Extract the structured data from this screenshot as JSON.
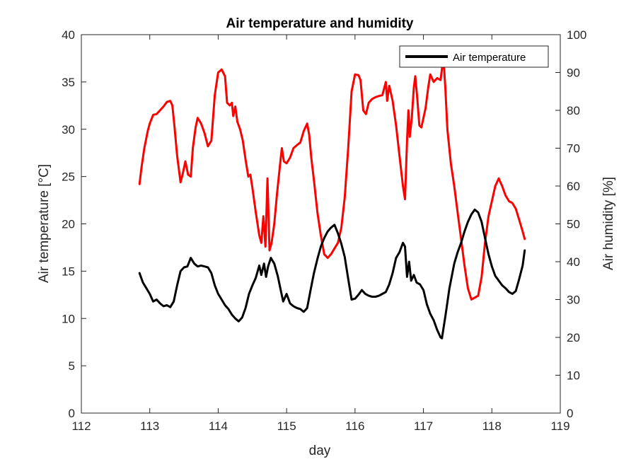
{
  "chart_data": {
    "type": "line",
    "title": "Air temperature and humidity",
    "xlabel": "day",
    "ylabel_left": "Air temperature [°C]",
    "ylabel_right": "Air humidity [%]",
    "xlim": [
      112,
      119
    ],
    "ylim_left": [
      0,
      40
    ],
    "ylim_right": [
      0,
      100
    ],
    "x_ticks": [
      "112",
      "113",
      "114",
      "115",
      "116",
      "117",
      "118",
      "119"
    ],
    "y_left_ticks": [
      "0",
      "5",
      "10",
      "15",
      "20",
      "25",
      "30",
      "35",
      "40"
    ],
    "y_right_ticks": [
      "0",
      "10",
      "20",
      "30",
      "40",
      "50",
      "60",
      "70",
      "80",
      "90",
      "100"
    ],
    "grid": false,
    "legend": {
      "placement": "top-right",
      "entries": [
        "Air temperature"
      ]
    },
    "colors": {
      "temperature": "#000000",
      "humidity": "#ff0000"
    },
    "series": [
      {
        "name": "Air temperature",
        "axis": "left",
        "color": "#000000",
        "points": [
          [
            112.85,
            14.8
          ],
          [
            112.9,
            13.8
          ],
          [
            112.95,
            13.2
          ],
          [
            113.0,
            12.6
          ],
          [
            113.05,
            11.8
          ],
          [
            113.1,
            12.0
          ],
          [
            113.15,
            11.6
          ],
          [
            113.2,
            11.3
          ],
          [
            113.25,
            11.4
          ],
          [
            113.3,
            11.2
          ],
          [
            113.35,
            11.8
          ],
          [
            113.4,
            13.5
          ],
          [
            113.45,
            15.0
          ],
          [
            113.5,
            15.4
          ],
          [
            113.55,
            15.5
          ],
          [
            113.6,
            16.4
          ],
          [
            113.65,
            15.8
          ],
          [
            113.7,
            15.5
          ],
          [
            113.75,
            15.6
          ],
          [
            113.8,
            15.5
          ],
          [
            113.85,
            15.4
          ],
          [
            113.9,
            14.8
          ],
          [
            113.95,
            13.5
          ],
          [
            114.0,
            12.6
          ],
          [
            114.05,
            12.0
          ],
          [
            114.1,
            11.4
          ],
          [
            114.15,
            11.0
          ],
          [
            114.2,
            10.4
          ],
          [
            114.25,
            10.0
          ],
          [
            114.3,
            9.7
          ],
          [
            114.35,
            10.1
          ],
          [
            114.4,
            11.1
          ],
          [
            114.45,
            12.6
          ],
          [
            114.5,
            13.5
          ],
          [
            114.55,
            14.3
          ],
          [
            114.6,
            15.6
          ],
          [
            114.63,
            14.6
          ],
          [
            114.67,
            15.8
          ],
          [
            114.7,
            14.4
          ],
          [
            114.73,
            15.5
          ],
          [
            114.77,
            16.4
          ],
          [
            114.82,
            15.8
          ],
          [
            114.87,
            14.5
          ],
          [
            114.92,
            12.8
          ],
          [
            114.95,
            11.8
          ],
          [
            115.0,
            12.6
          ],
          [
            115.05,
            11.6
          ],
          [
            115.1,
            11.3
          ],
          [
            115.15,
            11.1
          ],
          [
            115.2,
            11.0
          ],
          [
            115.25,
            10.7
          ],
          [
            115.3,
            11.1
          ],
          [
            115.35,
            13.0
          ],
          [
            115.4,
            14.8
          ],
          [
            115.45,
            16.3
          ],
          [
            115.5,
            17.6
          ],
          [
            115.55,
            18.5
          ],
          [
            115.6,
            19.2
          ],
          [
            115.65,
            19.6
          ],
          [
            115.7,
            19.9
          ],
          [
            115.75,
            19.0
          ],
          [
            115.8,
            17.9
          ],
          [
            115.85,
            16.5
          ],
          [
            115.9,
            14.2
          ],
          [
            115.95,
            12.0
          ],
          [
            116.0,
            12.1
          ],
          [
            116.05,
            12.5
          ],
          [
            116.1,
            13.0
          ],
          [
            116.15,
            12.6
          ],
          [
            116.2,
            12.4
          ],
          [
            116.25,
            12.3
          ],
          [
            116.3,
            12.3
          ],
          [
            116.35,
            12.4
          ],
          [
            116.4,
            12.6
          ],
          [
            116.45,
            12.8
          ],
          [
            116.5,
            13.6
          ],
          [
            116.55,
            14.8
          ],
          [
            116.6,
            16.4
          ],
          [
            116.65,
            17.0
          ],
          [
            116.7,
            18.0
          ],
          [
            116.73,
            17.6
          ],
          [
            116.76,
            14.4
          ],
          [
            116.79,
            16.0
          ],
          [
            116.82,
            14.0
          ],
          [
            116.86,
            14.6
          ],
          [
            116.9,
            13.8
          ],
          [
            116.95,
            13.6
          ],
          [
            117.0,
            13.0
          ],
          [
            117.05,
            11.5
          ],
          [
            117.1,
            10.5
          ],
          [
            117.15,
            9.8
          ],
          [
            117.2,
            8.8
          ],
          [
            117.25,
            8.0
          ],
          [
            117.27,
            7.9
          ],
          [
            117.32,
            10.2
          ],
          [
            117.38,
            13.2
          ],
          [
            117.45,
            15.8
          ],
          [
            117.5,
            17.0
          ],
          [
            117.55,
            18.0
          ],
          [
            117.6,
            19.2
          ],
          [
            117.65,
            20.2
          ],
          [
            117.7,
            21.0
          ],
          [
            117.75,
            21.5
          ],
          [
            117.8,
            21.2
          ],
          [
            117.85,
            20.2
          ],
          [
            117.9,
            18.5
          ],
          [
            117.95,
            16.8
          ],
          [
            118.0,
            15.5
          ],
          [
            118.05,
            14.5
          ],
          [
            118.1,
            14.0
          ],
          [
            118.15,
            13.5
          ],
          [
            118.2,
            13.2
          ],
          [
            118.25,
            12.8
          ],
          [
            118.3,
            12.6
          ],
          [
            118.35,
            12.9
          ],
          [
            118.4,
            14.2
          ],
          [
            118.45,
            15.6
          ],
          [
            118.48,
            17.2
          ]
        ]
      },
      {
        "name": "Air humidity",
        "axis": "right",
        "color": "#ff0000",
        "points": [
          [
            112.85,
            60.5
          ],
          [
            112.88,
            65.0
          ],
          [
            112.92,
            70.0
          ],
          [
            112.97,
            74.5
          ],
          [
            113.0,
            76.5
          ],
          [
            113.05,
            78.8
          ],
          [
            113.1,
            79.0
          ],
          [
            113.15,
            80.0
          ],
          [
            113.2,
            81.0
          ],
          [
            113.25,
            82.2
          ],
          [
            113.3,
            82.5
          ],
          [
            113.33,
            81.3
          ],
          [
            113.36,
            76.0
          ],
          [
            113.4,
            68.0
          ],
          [
            113.45,
            61.0
          ],
          [
            113.48,
            63.0
          ],
          [
            113.52,
            66.5
          ],
          [
            113.56,
            63.0
          ],
          [
            113.6,
            62.5
          ],
          [
            113.63,
            70.0
          ],
          [
            113.67,
            75.5
          ],
          [
            113.7,
            78.0
          ],
          [
            113.75,
            76.5
          ],
          [
            113.8,
            74.0
          ],
          [
            113.85,
            70.5
          ],
          [
            113.9,
            72.0
          ],
          [
            113.95,
            84.0
          ],
          [
            114.0,
            90.0
          ],
          [
            114.05,
            90.8
          ],
          [
            114.1,
            89.0
          ],
          [
            114.13,
            82.0
          ],
          [
            114.17,
            81.3
          ],
          [
            114.2,
            82.0
          ],
          [
            114.22,
            78.5
          ],
          [
            114.25,
            81.0
          ],
          [
            114.28,
            77.0
          ],
          [
            114.32,
            75.0
          ],
          [
            114.36,
            72.0
          ],
          [
            114.4,
            67.0
          ],
          [
            114.44,
            62.5
          ],
          [
            114.47,
            63.0
          ],
          [
            114.5,
            59.5
          ],
          [
            114.55,
            53.0
          ],
          [
            114.6,
            47.0
          ],
          [
            114.63,
            45.0
          ],
          [
            114.66,
            52.0
          ],
          [
            114.69,
            44.0
          ],
          [
            114.72,
            62.0
          ],
          [
            114.75,
            43.0
          ],
          [
            114.78,
            45.0
          ],
          [
            114.82,
            50.0
          ],
          [
            114.86,
            58.0
          ],
          [
            114.9,
            65.0
          ],
          [
            114.93,
            70.0
          ],
          [
            114.96,
            66.5
          ],
          [
            115.0,
            66.0
          ],
          [
            115.05,
            67.5
          ],
          [
            115.1,
            70.0
          ],
          [
            115.15,
            70.8
          ],
          [
            115.2,
            71.5
          ],
          [
            115.25,
            74.5
          ],
          [
            115.3,
            76.5
          ],
          [
            115.33,
            73.5
          ],
          [
            115.36,
            67.5
          ],
          [
            115.4,
            61.5
          ],
          [
            115.45,
            53.0
          ],
          [
            115.5,
            47.0
          ],
          [
            115.55,
            42.0
          ],
          [
            115.6,
            41.0
          ],
          [
            115.65,
            42.0
          ],
          [
            115.7,
            43.5
          ],
          [
            115.75,
            45.0
          ],
          [
            115.8,
            49.0
          ],
          [
            115.85,
            57.0
          ],
          [
            115.9,
            70.0
          ],
          [
            115.95,
            85.0
          ],
          [
            116.0,
            89.5
          ],
          [
            116.05,
            89.3
          ],
          [
            116.08,
            88.0
          ],
          [
            116.12,
            80.0
          ],
          [
            116.16,
            79.0
          ],
          [
            116.2,
            82.0
          ],
          [
            116.25,
            83.0
          ],
          [
            116.3,
            83.5
          ],
          [
            116.35,
            83.8
          ],
          [
            116.4,
            84.0
          ],
          [
            116.45,
            87.5
          ],
          [
            116.47,
            82.5
          ],
          [
            116.5,
            86.5
          ],
          [
            116.55,
            82.5
          ],
          [
            116.6,
            76.0
          ],
          [
            116.65,
            68.0
          ],
          [
            116.7,
            60.0
          ],
          [
            116.73,
            56.5
          ],
          [
            116.76,
            72.0
          ],
          [
            116.78,
            80.0
          ],
          [
            116.8,
            73.0
          ],
          [
            116.83,
            78.0
          ],
          [
            116.86,
            86.0
          ],
          [
            116.88,
            89.0
          ],
          [
            116.91,
            83.0
          ],
          [
            116.94,
            76.0
          ],
          [
            116.97,
            75.5
          ],
          [
            117.0,
            78.0
          ],
          [
            117.03,
            80.5
          ],
          [
            117.07,
            86.0
          ],
          [
            117.1,
            89.5
          ],
          [
            117.15,
            87.5
          ],
          [
            117.2,
            88.5
          ],
          [
            117.25,
            88.0
          ],
          [
            117.28,
            92.5
          ],
          [
            117.3,
            91.5
          ],
          [
            117.32,
            86.0
          ],
          [
            117.35,
            75.0
          ],
          [
            117.4,
            66.0
          ],
          [
            117.45,
            60.0
          ],
          [
            117.5,
            53.0
          ],
          [
            117.55,
            46.0
          ],
          [
            117.6,
            39.0
          ],
          [
            117.65,
            33.0
          ],
          [
            117.7,
            30.0
          ],
          [
            117.75,
            30.5
          ],
          [
            117.8,
            31.0
          ],
          [
            117.85,
            36.0
          ],
          [
            117.9,
            45.0
          ],
          [
            117.95,
            52.0
          ],
          [
            118.0,
            56.0
          ],
          [
            118.05,
            60.0
          ],
          [
            118.1,
            62.0
          ],
          [
            118.15,
            60.0
          ],
          [
            118.2,
            57.5
          ],
          [
            118.25,
            56.0
          ],
          [
            118.3,
            55.5
          ],
          [
            118.35,
            54.0
          ],
          [
            118.4,
            51.0
          ],
          [
            118.45,
            48.0
          ],
          [
            118.48,
            46.0
          ]
        ]
      }
    ]
  }
}
